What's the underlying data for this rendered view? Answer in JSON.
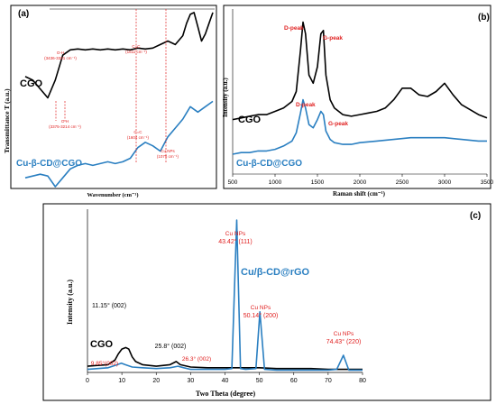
{
  "chart_data": [
    {
      "panel": "(a)",
      "type": "line",
      "xlabel": "Wavenumber (cm⁻¹)",
      "ylabel": "Transmittance T (a.u.)",
      "x_axis_ticks": false,
      "series": [
        {
          "name": "CGO",
          "color": "#000000",
          "x": [
            0,
            0.04,
            0.08,
            0.12,
            0.16,
            0.2,
            0.24,
            0.28,
            0.32,
            0.36,
            0.4,
            0.44,
            0.48,
            0.52,
            0.56,
            0.6,
            0.64,
            0.68,
            0.72,
            0.76,
            0.8,
            0.84,
            0.86,
            0.88,
            0.9,
            0.92,
            0.94,
            0.96,
            0.98,
            1.0
          ],
          "y": [
            0.62,
            0.6,
            0.55,
            0.5,
            0.6,
            0.74,
            0.77,
            0.775,
            0.77,
            0.775,
            0.77,
            0.775,
            0.77,
            0.775,
            0.77,
            0.78,
            0.775,
            0.78,
            0.8,
            0.82,
            0.8,
            0.85,
            0.92,
            0.97,
            0.98,
            0.9,
            0.82,
            0.86,
            0.92,
            0.98
          ]
        },
        {
          "name": "Cu-β-CD@CGO",
          "color": "#2a7fc1",
          "x": [
            0,
            0.04,
            0.08,
            0.12,
            0.16,
            0.2,
            0.24,
            0.28,
            0.32,
            0.36,
            0.4,
            0.44,
            0.48,
            0.52,
            0.56,
            0.6,
            0.64,
            0.68,
            0.72,
            0.76,
            0.8,
            0.84,
            0.88,
            0.92,
            0.96,
            1.0
          ],
          "y": [
            0.05,
            0.06,
            0.07,
            0.06,
            0.0,
            0.05,
            0.1,
            0.12,
            0.13,
            0.12,
            0.13,
            0.14,
            0.13,
            0.14,
            0.16,
            0.22,
            0.25,
            0.23,
            0.2,
            0.28,
            0.33,
            0.38,
            0.45,
            0.42,
            0.45,
            0.48
          ]
        }
      ],
      "annotations": [
        {
          "text": "O-H",
          "sub": "(3436-3331 cm⁻¹)"
        },
        {
          "text": "C=C",
          "sub": "(1611 cm⁻¹)"
        },
        {
          "text": "O-H",
          "sub": "(3375-3214 cm⁻¹)"
        },
        {
          "text": "C=C",
          "sub": "(1604 cm⁻¹)"
        },
        {
          "text": "Cu NPs",
          "sub": "(1075 cm⁻¹)"
        }
      ]
    },
    {
      "panel": "(b)",
      "type": "line",
      "xlabel": "Raman shift (cm⁻¹)",
      "ylabel": "Intensity (a.u.)",
      "xlim": [
        500,
        3500
      ],
      "xticks": [
        500,
        1000,
        1500,
        2000,
        2500,
        3000,
        3500
      ],
      "series": [
        {
          "name": "CGO",
          "color": "#000000",
          "x": [
            500,
            600,
            700,
            800,
            900,
            1000,
            1100,
            1200,
            1250,
            1300,
            1330,
            1360,
            1400,
            1450,
            1500,
            1540,
            1570,
            1600,
            1650,
            1700,
            1800,
            1900,
            2000,
            2100,
            2200,
            2300,
            2400,
            2500,
            2600,
            2700,
            2800,
            2900,
            3000,
            3100,
            3200,
            3300,
            3400,
            3500
          ],
          "y": [
            0.33,
            0.34,
            0.35,
            0.36,
            0.36,
            0.38,
            0.4,
            0.44,
            0.5,
            0.75,
            0.92,
            0.85,
            0.6,
            0.55,
            0.65,
            0.85,
            0.87,
            0.6,
            0.45,
            0.4,
            0.36,
            0.35,
            0.36,
            0.37,
            0.38,
            0.4,
            0.45,
            0.52,
            0.52,
            0.48,
            0.47,
            0.5,
            0.55,
            0.48,
            0.42,
            0.39,
            0.36,
            0.34
          ]
        },
        {
          "name": "Cu-β-CD@CGO",
          "color": "#2a7fc1",
          "x": [
            500,
            600,
            700,
            800,
            900,
            1000,
            1100,
            1200,
            1250,
            1300,
            1330,
            1360,
            1400,
            1450,
            1500,
            1540,
            1570,
            1600,
            1650,
            1700,
            1800,
            1900,
            2000,
            2200,
            2400,
            2600,
            2800,
            3000,
            3200,
            3400,
            3500
          ],
          "y": [
            0.12,
            0.13,
            0.13,
            0.14,
            0.14,
            0.15,
            0.17,
            0.2,
            0.25,
            0.37,
            0.45,
            0.4,
            0.3,
            0.28,
            0.33,
            0.38,
            0.36,
            0.26,
            0.21,
            0.19,
            0.18,
            0.18,
            0.19,
            0.2,
            0.21,
            0.22,
            0.22,
            0.22,
            0.21,
            0.2,
            0.2
          ]
        }
      ],
      "annotations": [
        {
          "text": "D-peak"
        },
        {
          "text": "G-peak"
        },
        {
          "text": "D-peak"
        },
        {
          "text": "G-peak"
        }
      ]
    },
    {
      "panel": "(c)",
      "type": "line",
      "xlabel": "Two Theta (degree)",
      "ylabel": "Intensity (a.u.)",
      "xlim": [
        0,
        80
      ],
      "xticks": [
        0,
        10,
        20,
        30,
        40,
        50,
        60,
        70,
        80
      ],
      "series": [
        {
          "name": "CGO",
          "color": "#000000",
          "x": [
            0,
            3,
            6,
            8,
            9,
            10,
            11.15,
            12,
            13,
            14,
            16,
            20,
            24,
            25.8,
            27,
            30,
            35,
            40,
            45,
            50,
            55,
            60,
            65,
            70,
            75,
            80
          ],
          "y": [
            0.04,
            0.045,
            0.05,
            0.08,
            0.12,
            0.15,
            0.16,
            0.15,
            0.1,
            0.07,
            0.05,
            0.04,
            0.05,
            0.07,
            0.05,
            0.035,
            0.03,
            0.03,
            0.03,
            0.03,
            0.025,
            0.025,
            0.025,
            0.02,
            0.02,
            0.02
          ]
        },
        {
          "name": "Cu/β-CD@rGO",
          "color": "#2a7fc1",
          "x": [
            0,
            3,
            6,
            8,
            9.85,
            11,
            13,
            16,
            20,
            24,
            26.3,
            28,
            30,
            35,
            40,
            42,
            43.42,
            44.5,
            46,
            49,
            50.14,
            51.5,
            55,
            60,
            65,
            70,
            72.5,
            74.43,
            76,
            80
          ],
          "y": [
            0.02,
            0.025,
            0.03,
            0.045,
            0.06,
            0.05,
            0.035,
            0.03,
            0.025,
            0.03,
            0.04,
            0.03,
            0.02,
            0.02,
            0.02,
            0.025,
            0.98,
            0.025,
            0.02,
            0.025,
            0.39,
            0.02,
            0.015,
            0.015,
            0.015,
            0.015,
            0.02,
            0.11,
            0.015,
            0.015
          ]
        }
      ],
      "annotations": [
        {
          "text": "11.15° (002)"
        },
        {
          "text": "25.8° (002)"
        },
        {
          "text": "9.85°(002)"
        },
        {
          "text": "26.3° (002)"
        },
        {
          "text": "Cu NPs",
          "sub": "43.42° (111)"
        },
        {
          "text": "Cu NPs",
          "sub": "50.14° (200)"
        },
        {
          "text": "Cu NPs",
          "sub": "74.43° (220)"
        }
      ]
    }
  ]
}
